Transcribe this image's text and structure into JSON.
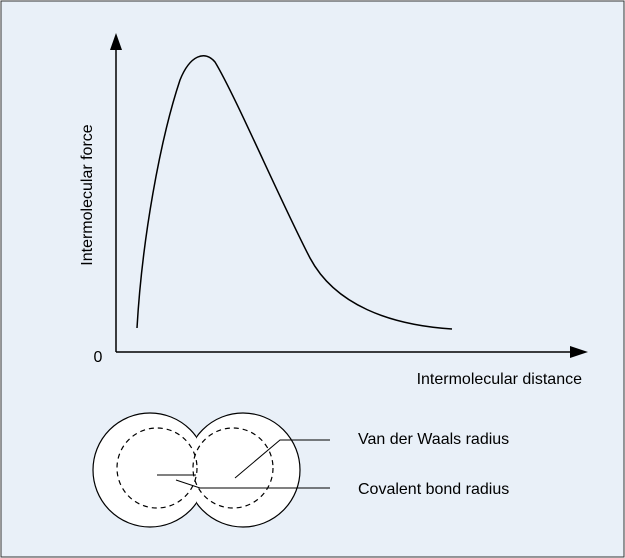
{
  "axes": {
    "y_label": "Intermolecular force",
    "origin_label": "0",
    "x_label": "Intermolecular distance"
  },
  "annotations": {
    "van_der_waals": "Van der Waals radius",
    "covalent": "Covalent bond radius"
  }
}
